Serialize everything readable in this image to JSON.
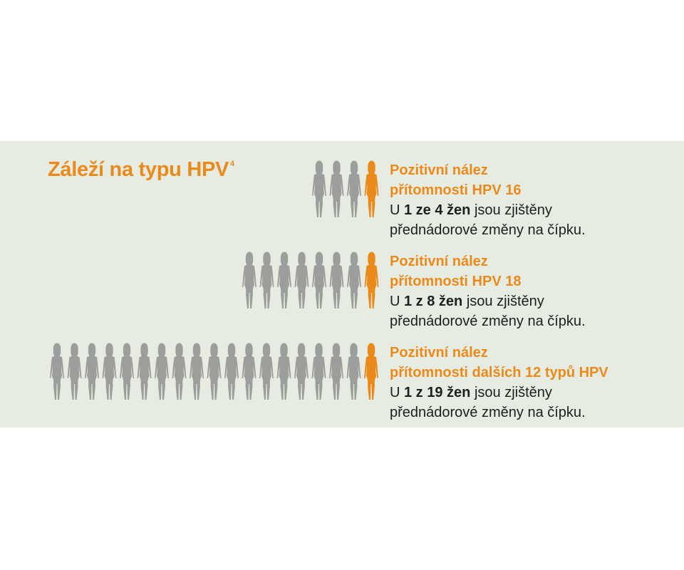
{
  "colors": {
    "background": "#e7ece3",
    "accent": "#ea8a1b",
    "figure_gray": "#9d9d9c",
    "text": "#1e1e1e"
  },
  "title": {
    "text": "Záleží na typu HPV",
    "superscript": "4"
  },
  "icon": "woman-silhouette-icon",
  "groups": [
    {
      "total": 4,
      "highlighted": 1,
      "heading_line1": "Pozitivní nález",
      "heading_line2": "přítomnosti HPV 16",
      "prefix": "U ",
      "bold": "1 ze 4 žen",
      "suffix": " jsou zjištěny",
      "line4": "přednádorové změny na čípku."
    },
    {
      "total": 8,
      "highlighted": 1,
      "heading_line1": "Pozitivní nález",
      "heading_line2": "přítomnosti HPV 18",
      "prefix": "U ",
      "bold": "1 z 8 žen",
      "suffix": " jsou zjištěny",
      "line4": "přednádorové změny na čípku."
    },
    {
      "total": 19,
      "highlighted": 1,
      "heading_line1": "Pozitivní nález",
      "heading_line2": "přítomnosti dalších 12 typů HPV",
      "prefix": "U ",
      "bold": "1 z 19 žen",
      "suffix": " jsou zjištěny",
      "line4": "přednádorové změny na čípku."
    }
  ]
}
